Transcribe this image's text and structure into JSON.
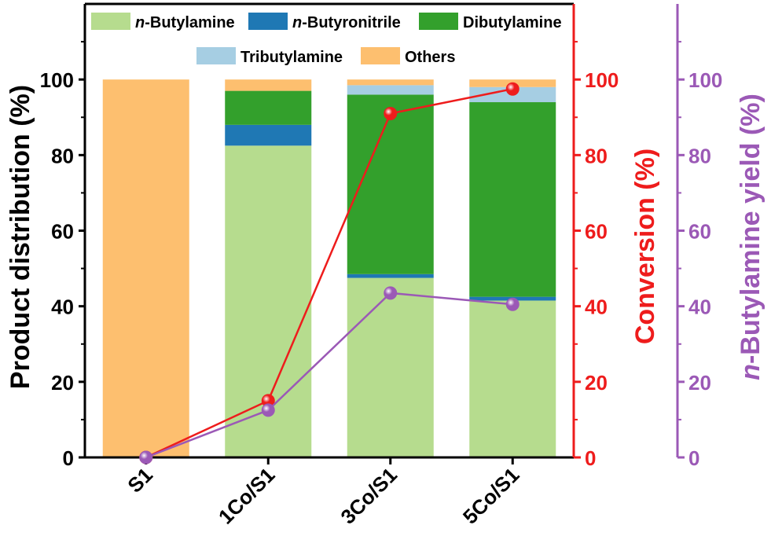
{
  "chart_data": {
    "type": "bar",
    "stacked": true,
    "categories": [
      "S1",
      "1Co/S1",
      "3Co/S1",
      "5Co/S1"
    ],
    "left_axis": {
      "label": "Product distribution (%)",
      "ylim": [
        0,
        120
      ],
      "ticks": [
        0,
        20,
        40,
        60,
        80,
        100
      ],
      "color": "#000000"
    },
    "right_axis_1": {
      "label": "Conversion (%)",
      "ylim": [
        0,
        120
      ],
      "ticks": [
        0,
        20,
        40,
        60,
        80,
        100
      ],
      "color": "#ee1c1c"
    },
    "right_axis_2": {
      "label_italic_part": "n",
      "label_rest": "-Butylamine yield (%)",
      "ylim": [
        0,
        120
      ],
      "ticks": [
        0,
        20,
        40,
        60,
        80,
        100
      ],
      "color": "#9b59b6"
    },
    "bar_series": [
      {
        "name_italic": "n",
        "name_rest": "-Butylamine",
        "color": "#b6dc8e",
        "values": [
          0,
          82.5,
          47.5,
          41.5
        ]
      },
      {
        "name_italic": "n",
        "name_rest": "-Butyronitrile",
        "color": "#1f78b4",
        "values": [
          0,
          5.5,
          1.0,
          1.0
        ]
      },
      {
        "name_italic": "",
        "name_rest": "Dibutylamine",
        "color": "#33a02c",
        "values": [
          0,
          9.0,
          47.5,
          51.5
        ]
      },
      {
        "name_italic": "",
        "name_rest": "Tributylamine",
        "color": "#a6cee3",
        "values": [
          0,
          0,
          2.5,
          4.0
        ]
      },
      {
        "name_italic": "",
        "name_rest": "Others",
        "color": "#fdbf6f",
        "values": [
          100,
          3.0,
          1.5,
          2.0
        ]
      }
    ],
    "line_series": [
      {
        "axis": "right_axis_1",
        "color": "#ee1c1c",
        "values": [
          0,
          15,
          91,
          97.5
        ]
      },
      {
        "axis": "right_axis_2",
        "color": "#9b59b6",
        "values": [
          0,
          12.5,
          43.5,
          40.5
        ]
      }
    ],
    "legend_position": "top"
  }
}
